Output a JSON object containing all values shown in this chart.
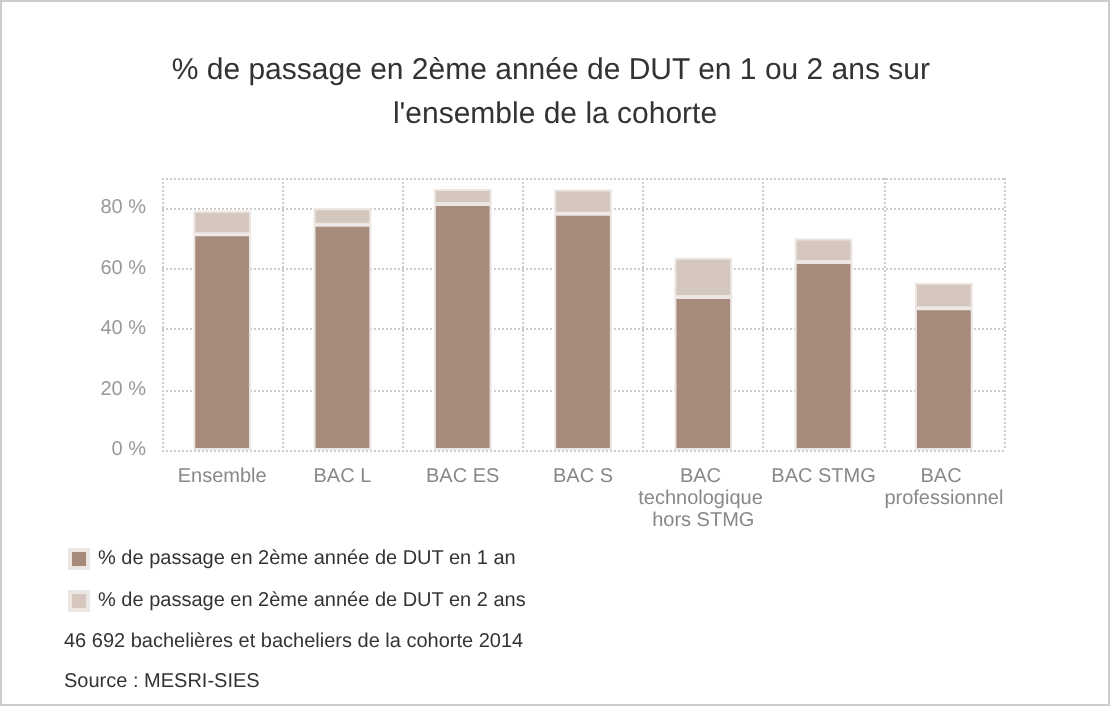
{
  "chart_data": {
    "type": "bar",
    "title": "% de passage en 2ème année de DUT en 1 ou 2 ans sur l'ensemble de la cohorte",
    "categories": [
      "Ensemble",
      "BAC L",
      "BAC ES",
      "BAC S",
      "BAC technologique hors STMG",
      "BAC STMG",
      "BAC professionnel"
    ],
    "stacked": true,
    "series": [
      {
        "name": "% de passage en 2ème année de DUT en 1 an",
        "color": "#a68b7c",
        "values": [
          71.4,
          74.5,
          81.4,
          78.2,
          50.6,
          62.2,
          46.9
        ]
      },
      {
        "name": "% de passage en 2ème année de DUT en 2 ans",
        "color": "#d5c6be",
        "values": [
          7.8,
          5.5,
          5.0,
          8.0,
          13.0,
          7.8,
          8.4
        ]
      }
    ],
    "ylim": [
      0,
      90
    ],
    "yticks": [
      {
        "value": 0,
        "label": "0 %"
      },
      {
        "value": 20,
        "label": "20 %"
      },
      {
        "value": 40,
        "label": "40 %"
      },
      {
        "value": 60,
        "label": "60 %"
      },
      {
        "value": 80,
        "label": "80 %"
      },
      {
        "value": 90,
        "label": null
      }
    ],
    "grid": true,
    "legend": "bottom left",
    "annotations": [
      "46 692 bachelières et bacheliers de la cohorte 2014",
      "Source : MESRI-SIES"
    ]
  }
}
